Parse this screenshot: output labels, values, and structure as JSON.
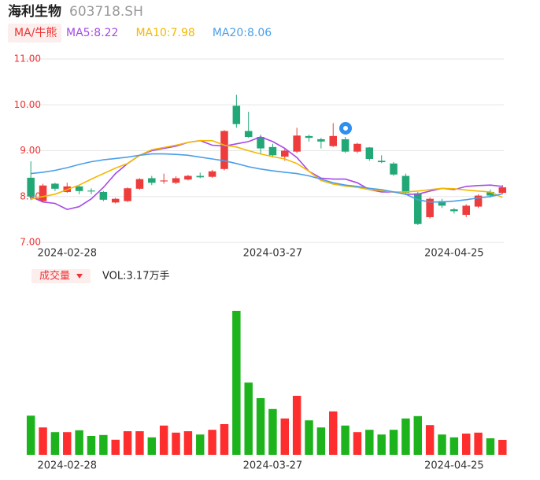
{
  "chart_data": {
    "type": "candlestick",
    "title": "海利生物",
    "subtitle": "603718.SH",
    "indicator_button": "MA/牛熊",
    "categories": [
      null,
      null,
      null,
      "2024-02-28",
      null,
      null,
      null,
      null,
      null,
      null,
      null,
      null,
      null,
      null,
      null,
      null,
      null,
      null,
      null,
      null,
      "2024-03-27",
      null,
      null,
      null,
      null,
      null,
      null,
      null,
      null,
      null,
      null,
      null,
      null,
      null,
      null,
      "2024-04-25",
      null,
      null,
      null,
      null
    ],
    "open": [
      8.41,
      7.9,
      8.28,
      8.1,
      8.22,
      8.13,
      8.1,
      7.87,
      7.9,
      8.17,
      8.4,
      8.33,
      8.3,
      8.37,
      8.45,
      8.43,
      8.6,
      9.98,
      9.43,
      9.3,
      9.08,
      8.87,
      8.98,
      9.32,
      9.25,
      9.1,
      9.25,
      8.98,
      9.07,
      8.78,
      8.72,
      8.45,
      8.07,
      7.55,
      7.9,
      7.72,
      7.6,
      7.78,
      8.1,
      8.08
    ],
    "close": [
      8.0,
      8.24,
      8.17,
      8.22,
      8.12,
      8.11,
      7.93,
      7.95,
      8.18,
      8.38,
      8.3,
      8.35,
      8.4,
      8.45,
      8.42,
      8.55,
      9.43,
      9.58,
      9.3,
      9.05,
      8.9,
      9.0,
      9.33,
      9.28,
      9.2,
      9.32,
      8.98,
      9.15,
      8.82,
      8.75,
      8.48,
      8.08,
      7.4,
      7.95,
      7.8,
      7.68,
      7.8,
      8.02,
      8.02,
      8.2
    ],
    "high": [
      8.77,
      8.28,
      8.3,
      8.3,
      8.25,
      8.18,
      8.12,
      7.97,
      8.2,
      8.4,
      8.45,
      8.5,
      8.44,
      8.47,
      8.52,
      8.58,
      9.45,
      10.22,
      9.85,
      9.35,
      9.15,
      9.05,
      9.5,
      9.35,
      9.28,
      9.6,
      9.3,
      9.17,
      9.08,
      8.9,
      8.75,
      8.5,
      8.1,
      7.98,
      7.95,
      7.75,
      7.83,
      8.05,
      8.15,
      8.25
    ],
    "low": [
      7.92,
      7.88,
      8.12,
      8.08,
      8.05,
      8.05,
      7.9,
      7.85,
      7.88,
      8.15,
      8.25,
      8.28,
      8.27,
      8.35,
      8.4,
      8.41,
      8.57,
      9.5,
      9.28,
      8.92,
      8.85,
      8.78,
      8.95,
      9.2,
      9.05,
      9.08,
      8.95,
      8.95,
      8.78,
      8.73,
      8.45,
      8.03,
      7.38,
      7.52,
      7.75,
      7.63,
      7.55,
      7.75,
      7.98,
      8.05
    ],
    "up_color": "#ee3b3b",
    "down_color": "#22a876",
    "ylim": [
      7,
      11
    ],
    "yticks": [
      {
        "value": 7,
        "label": "7.00"
      },
      {
        "value": 8,
        "label": "8.00"
      },
      {
        "value": 9,
        "label": "9.00"
      },
      {
        "value": 10,
        "label": "10.00"
      },
      {
        "value": 11,
        "label": "11.00"
      }
    ],
    "grid": true,
    "series": [
      {
        "name": "MA5",
        "legend_label": "MA5:8.22",
        "color": "#a64ae6",
        "values": [
          8.0,
          7.88,
          7.85,
          7.72,
          7.78,
          7.95,
          8.2,
          8.5,
          8.72,
          8.9,
          9.0,
          9.05,
          9.1,
          9.18,
          9.22,
          9.12,
          9.1,
          9.15,
          9.2,
          9.3,
          9.2,
          9.05,
          8.85,
          8.55,
          8.4,
          8.38,
          8.38,
          8.3,
          8.15,
          8.1,
          8.1,
          8.05,
          8.05,
          8.12,
          8.18,
          8.15,
          8.22,
          8.24,
          8.25,
          8.22
        ]
      },
      {
        "name": "MA10",
        "legend_label": "MA10:7.98",
        "color": "#f5b800",
        "values": [
          7.95,
          8.0,
          8.05,
          8.15,
          8.25,
          8.38,
          8.5,
          8.62,
          8.72,
          8.9,
          9.02,
          9.07,
          9.12,
          9.18,
          9.22,
          9.22,
          9.12,
          9.08,
          9.0,
          8.93,
          8.87,
          8.82,
          8.72,
          8.55,
          8.35,
          8.27,
          8.23,
          8.2,
          8.15,
          8.13,
          8.1,
          8.1,
          8.12,
          8.15,
          8.18,
          8.17,
          8.14,
          8.12,
          8.1,
          7.98
        ]
      },
      {
        "name": "MA20",
        "legend_label": "MA20:8.06",
        "color": "#4a9fe8",
        "values": [
          8.5,
          8.53,
          8.57,
          8.63,
          8.7,
          8.76,
          8.8,
          8.83,
          8.86,
          8.9,
          8.93,
          8.93,
          8.92,
          8.9,
          8.86,
          8.82,
          8.78,
          8.72,
          8.65,
          8.6,
          8.56,
          8.53,
          8.5,
          8.45,
          8.38,
          8.3,
          8.25,
          8.22,
          8.18,
          8.15,
          8.1,
          8.05,
          7.93,
          7.88,
          7.88,
          7.9,
          7.93,
          7.97,
          8.0,
          8.06
        ]
      }
    ],
    "volume": {
      "label": "成交量",
      "summary": "VOL:3.17万手",
      "up_color": "#ff2e2e",
      "down_color": "#1db31d",
      "ylim": [
        0,
        30.5
      ],
      "values": [
        8.3,
        5.8,
        4.8,
        4.8,
        5.2,
        4.0,
        4.2,
        3.2,
        5.0,
        5.0,
        3.7,
        6.2,
        4.7,
        5.0,
        4.3,
        5.3,
        6.5,
        30.5,
        15.3,
        12.0,
        9.7,
        7.7,
        12.5,
        7.3,
        5.8,
        9.2,
        6.2,
        4.8,
        5.3,
        4.3,
        5.3,
        7.7,
        8.2,
        6.3,
        4.3,
        3.7,
        4.5,
        4.7,
        3.5,
        3.17
      ]
    }
  }
}
